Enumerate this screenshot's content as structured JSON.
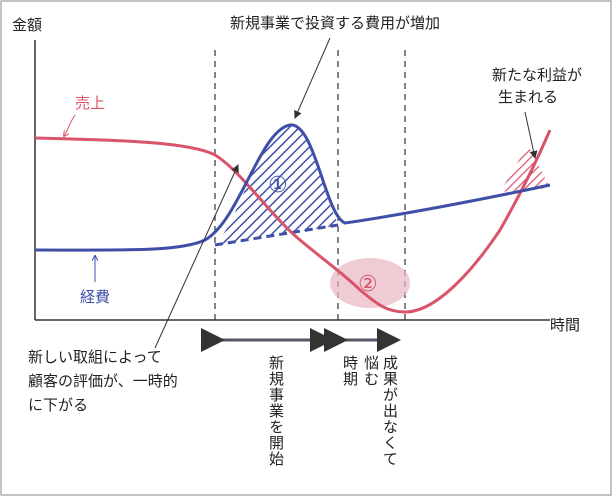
{
  "axes": {
    "y_label": "金額",
    "x_label": "時間"
  },
  "curves": {
    "sales": "売上",
    "expenses": "経費"
  },
  "callouts": {
    "investment": "新規事業で投資する費用が増加",
    "new_profit": [
      "新たな利益が",
      "生まれる"
    ],
    "reputation": [
      "新しい取組によって",
      "顧客の評価が、一時的",
      "に下がる"
    ]
  },
  "markers": [
    "①",
    "②"
  ],
  "phases": [
    "新規事業を開始",
    "悩む時期",
    "成果が出なくて"
  ]
}
